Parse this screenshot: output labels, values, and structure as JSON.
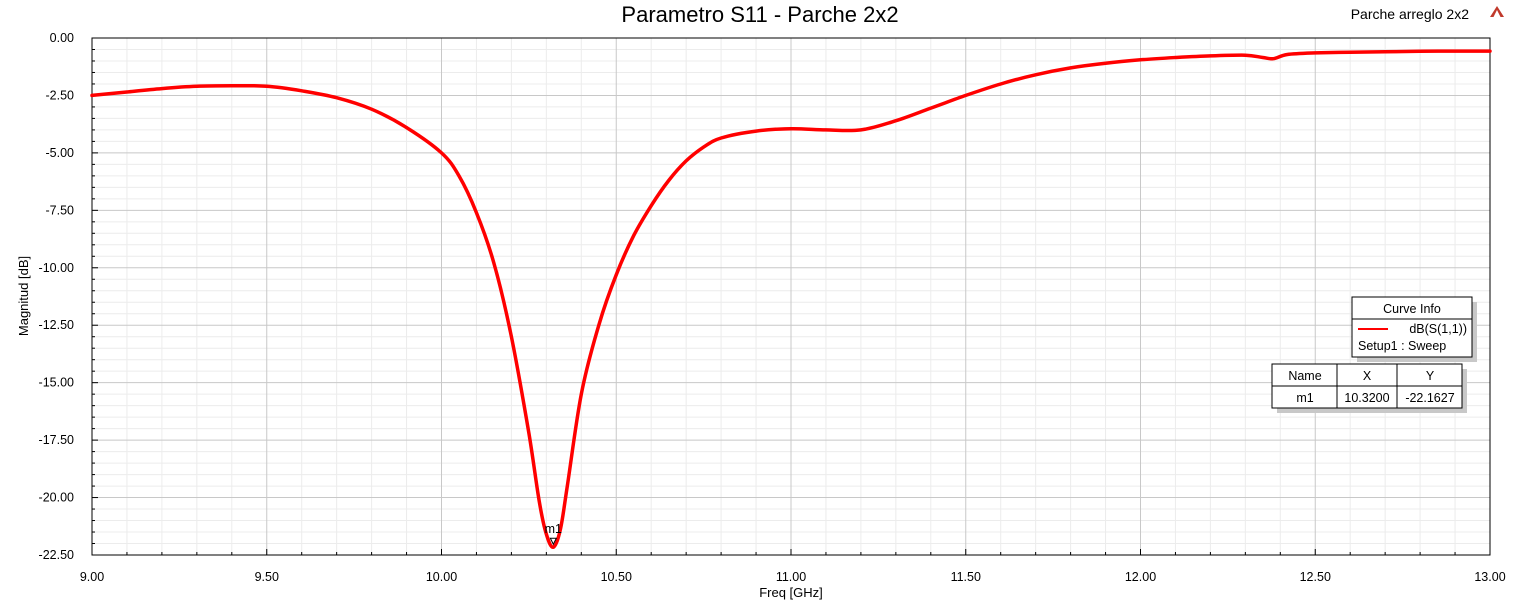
{
  "chart_data": {
    "type": "line",
    "title": "Parametro S11 - Parche 2x2",
    "project_label": "Parche arreglo 2x2",
    "xlabel": "Freq [GHz]",
    "ylabel": "Magnitud [dB]",
    "xlim": [
      9.0,
      13.0
    ],
    "ylim": [
      -22.5,
      0.0
    ],
    "x_ticks": [
      "9.00",
      "9.50",
      "10.00",
      "10.50",
      "11.00",
      "11.50",
      "12.00",
      "12.50",
      "13.00"
    ],
    "y_ticks": [
      "0.00",
      "-2.50",
      "-5.00",
      "-7.50",
      "-10.00",
      "-12.50",
      "-15.00",
      "-17.50",
      "-20.00",
      "-22.50"
    ],
    "grid": true,
    "series": [
      {
        "name": "dB(S(1,1))",
        "sweep": "Setup1 : Sweep",
        "color": "#ff0000",
        "x": [
          9.0,
          9.1,
          9.2,
          9.3,
          9.4,
          9.5,
          9.6,
          9.7,
          9.8,
          9.9,
          10.0,
          10.05,
          10.1,
          10.15,
          10.2,
          10.25,
          10.28,
          10.3,
          10.32,
          10.34,
          10.36,
          10.4,
          10.45,
          10.5,
          10.55,
          10.6,
          10.65,
          10.7,
          10.75,
          10.8,
          10.9,
          11.0,
          11.1,
          11.2,
          11.3,
          11.4,
          11.5,
          11.6,
          11.7,
          11.8,
          11.9,
          12.0,
          12.1,
          12.2,
          12.3,
          12.35,
          12.38,
          12.42,
          12.5,
          12.6,
          12.7,
          12.8,
          12.9,
          13.0
        ],
        "y": [
          -2.5,
          -2.35,
          -2.2,
          -2.1,
          -2.08,
          -2.1,
          -2.3,
          -2.6,
          -3.1,
          -3.9,
          -5.0,
          -6.0,
          -7.6,
          -9.8,
          -13.0,
          -17.2,
          -20.2,
          -21.6,
          -22.16,
          -21.4,
          -19.5,
          -15.5,
          -12.5,
          -10.3,
          -8.6,
          -7.3,
          -6.2,
          -5.35,
          -4.75,
          -4.35,
          -4.05,
          -3.95,
          -4.0,
          -4.0,
          -3.6,
          -3.05,
          -2.5,
          -2.0,
          -1.6,
          -1.3,
          -1.1,
          -0.95,
          -0.85,
          -0.78,
          -0.75,
          -0.85,
          -0.9,
          -0.72,
          -0.65,
          -0.62,
          -0.6,
          -0.58,
          -0.57,
          -0.57
        ]
      }
    ],
    "markers": [
      {
        "name": "m1",
        "x": 10.32,
        "y": -22.1627
      }
    ],
    "curve_info": {
      "header": "Curve Info",
      "entry": "dB(S(1,1))",
      "sub": "Setup1 : Sweep"
    },
    "marker_table": {
      "columns": [
        "Name",
        "X",
        "Y"
      ],
      "rows": [
        [
          "m1",
          "10.3200",
          "-22.1627"
        ]
      ]
    }
  }
}
